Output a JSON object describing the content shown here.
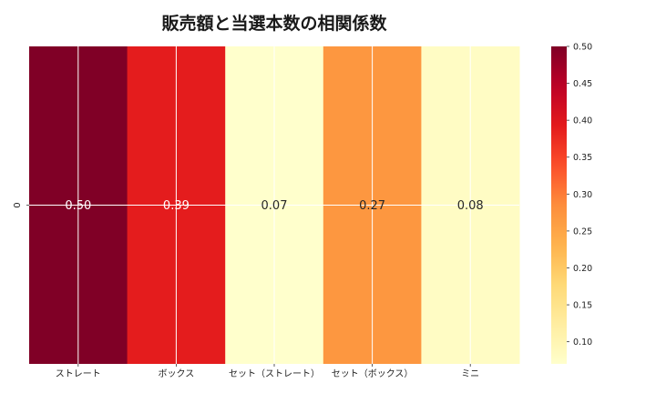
{
  "chart_data": {
    "type": "heatmap",
    "title": "販売額と当選本数の相関係数",
    "rows": [
      "0"
    ],
    "categories": [
      "ストレート",
      "ボックス",
      "セット（ストレート）",
      "セット（ボックス）",
      "ミニ"
    ],
    "values": [
      [
        0.5,
        0.39,
        0.07,
        0.27,
        0.08
      ]
    ],
    "cell_labels": [
      "0.50",
      "0.39",
      "0.07",
      "0.27",
      "0.08"
    ],
    "colormap": "YlOrRd",
    "color_range": [
      0.07,
      0.5
    ],
    "colorbar_ticks": [
      "0.50",
      "0.45",
      "0.40",
      "0.35",
      "0.30",
      "0.25",
      "0.20",
      "0.15",
      "0.10"
    ],
    "grid": true
  }
}
